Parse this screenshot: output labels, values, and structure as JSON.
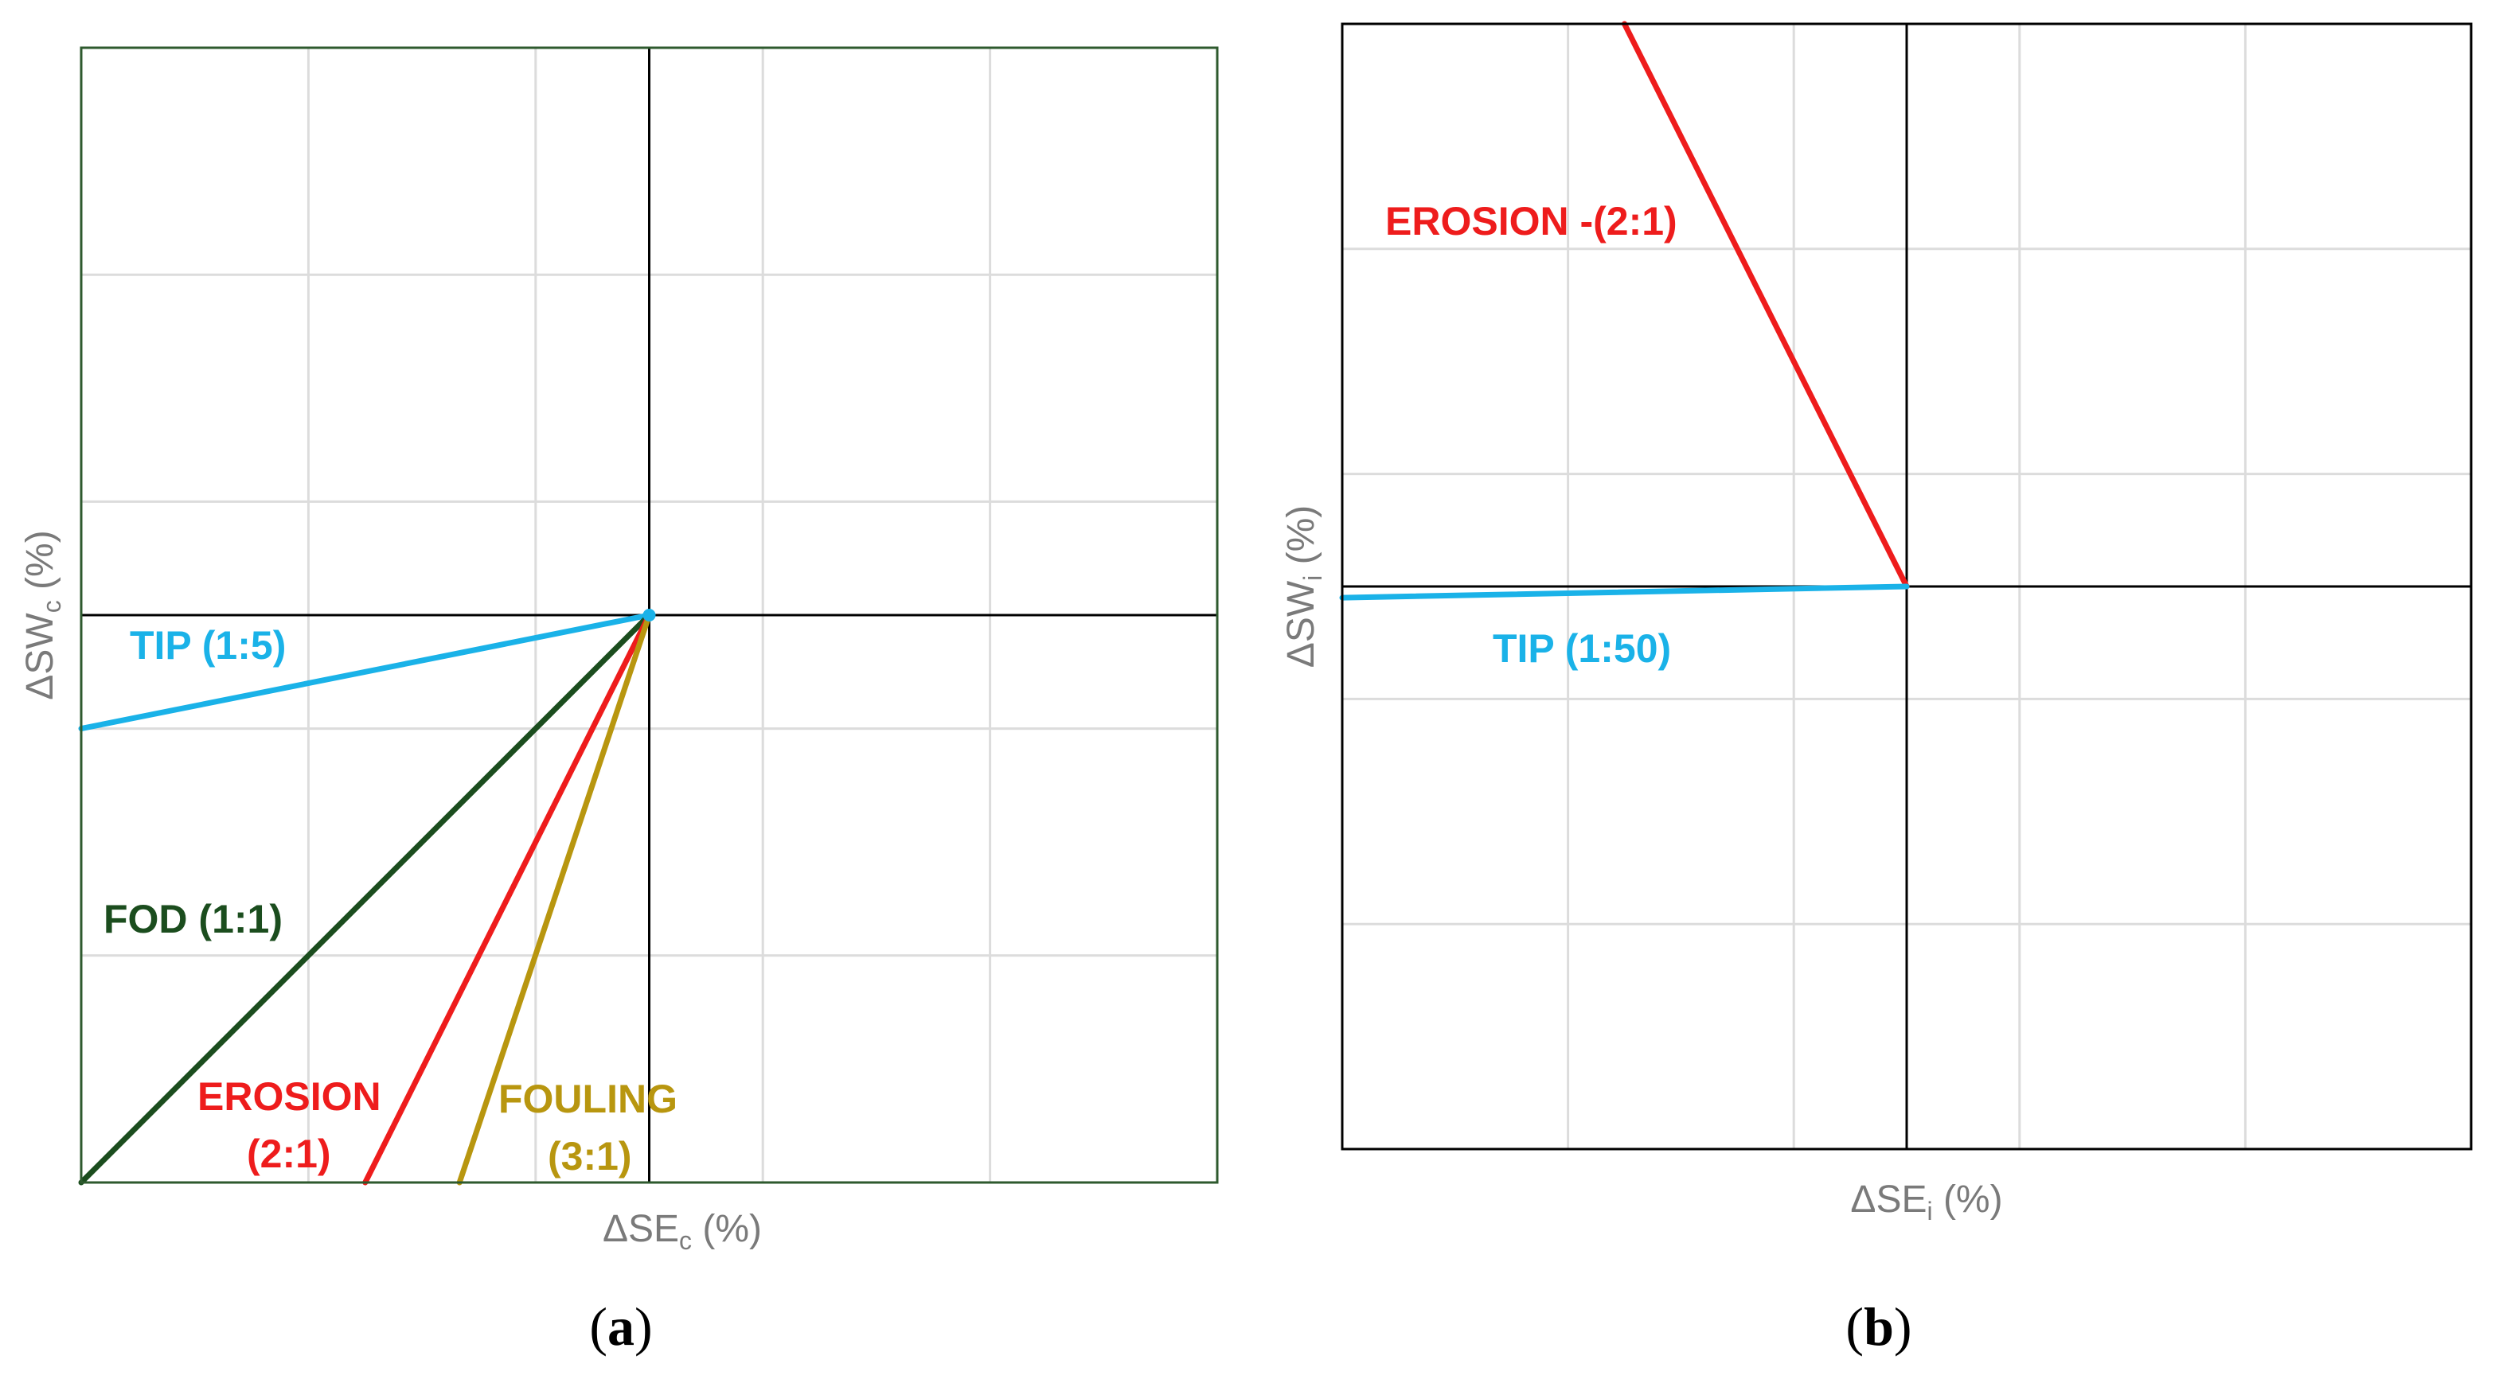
{
  "chart_data": [
    {
      "type": "line",
      "panel_label": "a",
      "xlabel": {
        "main": "ΔSE",
        "sub": "c",
        "unit": " (%)"
      },
      "ylabel": {
        "main": "ΔSW",
        "sub": "c",
        "unit": " (%)"
      },
      "xlim": [
        -5,
        5
      ],
      "ylim": [
        -5,
        5
      ],
      "grid": true,
      "series": [
        {
          "name": "TIP (1:5)",
          "lines": [
            "TIP (1:5)"
          ],
          "ratio": "1:5",
          "color": "#1ab2e8",
          "x": [
            -5,
            0
          ],
          "y": [
            -1,
            0
          ]
        },
        {
          "name": "FOD (1:1)",
          "lines": [
            "FOD (1:1)"
          ],
          "ratio": "1:1",
          "color": "#1b4d1e",
          "x": [
            -5,
            0
          ],
          "y": [
            -5,
            0
          ]
        },
        {
          "name": "EROSION (2:1)",
          "lines": [
            "EROSION",
            "(2:1)"
          ],
          "ratio": "2:1",
          "color": "#ee1c1c",
          "x": [
            -2.5,
            0
          ],
          "y": [
            -5,
            0
          ]
        },
        {
          "name": "FOULING (3:1)",
          "lines": [
            "FOULING",
            "(3:1)"
          ],
          "ratio": "3:1",
          "color": "#b8960f",
          "x": [
            -1.67,
            0
          ],
          "y": [
            -5,
            0
          ]
        }
      ]
    },
    {
      "type": "line",
      "panel_label": "b",
      "xlabel": {
        "main": "ΔSE",
        "sub": "i",
        "unit": " (%)"
      },
      "ylabel": {
        "main": "ΔSW",
        "sub": "i",
        "unit": " (%)"
      },
      "xlim": [
        -5,
        5
      ],
      "ylim": [
        -5,
        5
      ],
      "grid": true,
      "series": [
        {
          "name": "EROSION -(2:1)",
          "lines": [
            "EROSION -(2:1)"
          ],
          "ratio": "-(2:1)",
          "color": "#ee1c1c",
          "x": [
            -2.5,
            0
          ],
          "y": [
            5,
            0
          ]
        },
        {
          "name": "TIP (1:50)",
          "lines": [
            "TIP (1:50)"
          ],
          "ratio": "1:50",
          "color": "#1ab2e8",
          "x": [
            -5,
            0
          ],
          "y": [
            -0.1,
            0
          ]
        }
      ]
    }
  ]
}
